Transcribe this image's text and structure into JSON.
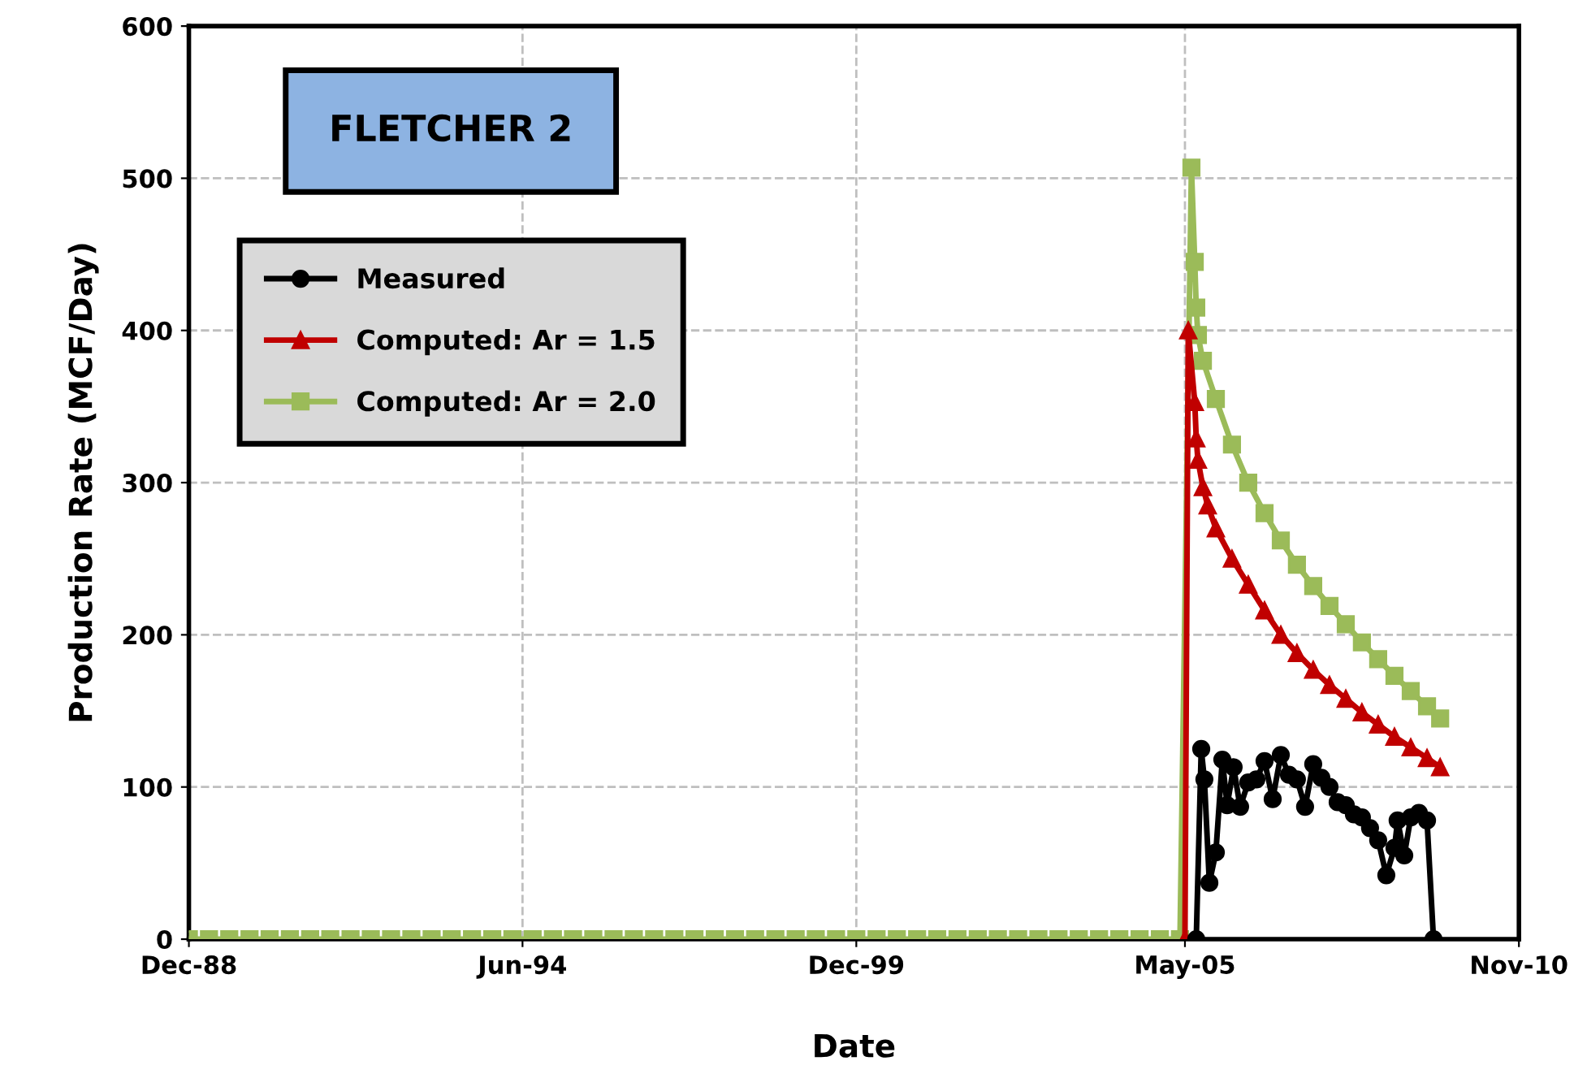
{
  "chart_data": {
    "type": "line",
    "title": "FLETCHER 2",
    "xlabel": "Date",
    "ylabel": "Production Rate (MCF/Day)",
    "xlim": [
      "1988-12-01",
      "2010-11-01"
    ],
    "xticks": [
      {
        "value": "1988-12-01",
        "label": "Dec-88"
      },
      {
        "value": "1994-06-01",
        "label": "Jun-94"
      },
      {
        "value": "1999-12-01",
        "label": "Dec-99"
      },
      {
        "value": "2005-05-01",
        "label": "May-05"
      },
      {
        "value": "2010-11-01",
        "label": "Nov-10"
      }
    ],
    "ylim": [
      0,
      600
    ],
    "yticks": [
      0,
      100,
      200,
      300,
      400,
      500,
      600
    ],
    "grid": true,
    "legend": "top left",
    "series": [
      {
        "name": "Measured",
        "color": "#000000",
        "marker": "circle",
        "x": [
          "2005-07-08",
          "2005-08-07",
          "2005-08-26",
          "2005-09-25",
          "2005-11-03",
          "2005-12-12",
          "2006-01-10",
          "2006-02-18",
          "2006-03-29",
          "2006-05-17",
          "2006-07-05",
          "2006-08-23",
          "2006-10-11",
          "2006-11-29",
          "2007-01-17",
          "2007-03-06",
          "2007-04-24",
          "2007-06-12",
          "2007-07-31",
          "2007-09-18",
          "2007-11-06",
          "2007-12-25",
          "2008-02-12",
          "2008-03-31",
          "2008-05-19",
          "2008-07-07",
          "2008-08-25",
          "2008-10-13",
          "2008-11-01",
          "2008-12-11",
          "2009-01-19",
          "2009-03-09",
          "2009-04-27",
          "2009-06-05"
        ],
        "values": [
          0,
          125,
          105,
          37,
          57,
          118,
          88,
          113,
          87,
          103,
          105,
          117,
          92,
          121,
          108,
          105,
          87,
          115,
          106,
          100,
          90,
          88,
          82,
          80,
          73,
          65,
          42,
          60,
          78,
          55,
          80,
          83,
          78,
          0
        ]
      },
      {
        "name": "Computed: Ar = 1.5",
        "color": "#c00000",
        "marker": "triangle",
        "x": [
          "2005-05-01",
          "2005-05-21",
          "2005-06-29",
          "2005-07-08",
          "2005-07-18",
          "2005-08-17",
          "2005-09-15",
          "2005-11-03",
          "2006-02-08",
          "2006-05-17",
          "2006-08-23",
          "2006-11-29",
          "2007-03-06",
          "2007-06-12",
          "2007-09-18",
          "2007-12-25",
          "2008-03-31",
          "2008-07-07",
          "2008-10-13",
          "2009-01-19",
          "2009-04-27",
          "2009-07-15"
        ],
        "values": [
          0,
          400,
          353,
          329,
          315,
          297,
          285,
          270,
          250,
          233,
          216,
          200,
          188,
          177,
          167,
          158,
          149,
          141,
          133,
          126,
          119,
          113
        ]
      },
      {
        "name": "Computed: Ar = 2.0",
        "color": "#9bbb59",
        "marker": "square",
        "x": [
          "1988-12",
          "1989-04",
          "1989-08",
          "1989-12",
          "1990-04",
          "1990-08",
          "1990-12",
          "1991-04",
          "1991-08",
          "1991-12",
          "1992-04",
          "1992-08",
          "1992-12",
          "1993-04",
          "1993-08",
          "1993-12",
          "1994-04",
          "1994-08",
          "1994-12",
          "1995-04",
          "1995-08",
          "1995-12",
          "1996-04",
          "1996-08",
          "1996-12",
          "1997-04",
          "1997-08",
          "1997-12",
          "1998-04",
          "1998-08",
          "1998-12",
          "1999-04",
          "1999-08",
          "1999-12",
          "2000-04",
          "2000-08",
          "2000-12",
          "2001-04",
          "2001-08",
          "2001-12",
          "2002-04",
          "2002-08",
          "2002-12",
          "2003-04",
          "2003-08",
          "2003-12",
          "2004-04",
          "2004-08",
          "2004-12",
          "2005-04",
          "2005-06-09",
          "2005-06-29",
          "2005-07-08",
          "2005-07-18",
          "2005-08-17",
          "2005-11-03",
          "2006-02-08",
          "2006-05-17",
          "2006-08-23",
          "2006-11-29",
          "2007-03-06",
          "2007-06-12",
          "2007-09-18",
          "2007-12-25",
          "2008-03-31",
          "2008-07-07",
          "2008-10-13",
          "2009-01-19",
          "2009-04-27",
          "2009-07-15"
        ],
        "values": [
          0,
          0,
          0,
          0,
          0,
          0,
          0,
          0,
          0,
          0,
          0,
          0,
          0,
          0,
          0,
          0,
          0,
          0,
          0,
          0,
          0,
          0,
          0,
          0,
          0,
          0,
          0,
          0,
          0,
          0,
          0,
          0,
          0,
          0,
          0,
          0,
          0,
          0,
          0,
          0,
          0,
          0,
          0,
          0,
          0,
          0,
          0,
          0,
          0,
          0,
          507,
          445,
          415,
          397,
          380,
          355,
          325,
          300,
          280,
          262,
          246,
          232,
          219,
          207,
          195,
          184,
          173,
          163,
          153,
          145
        ]
      }
    ]
  }
}
